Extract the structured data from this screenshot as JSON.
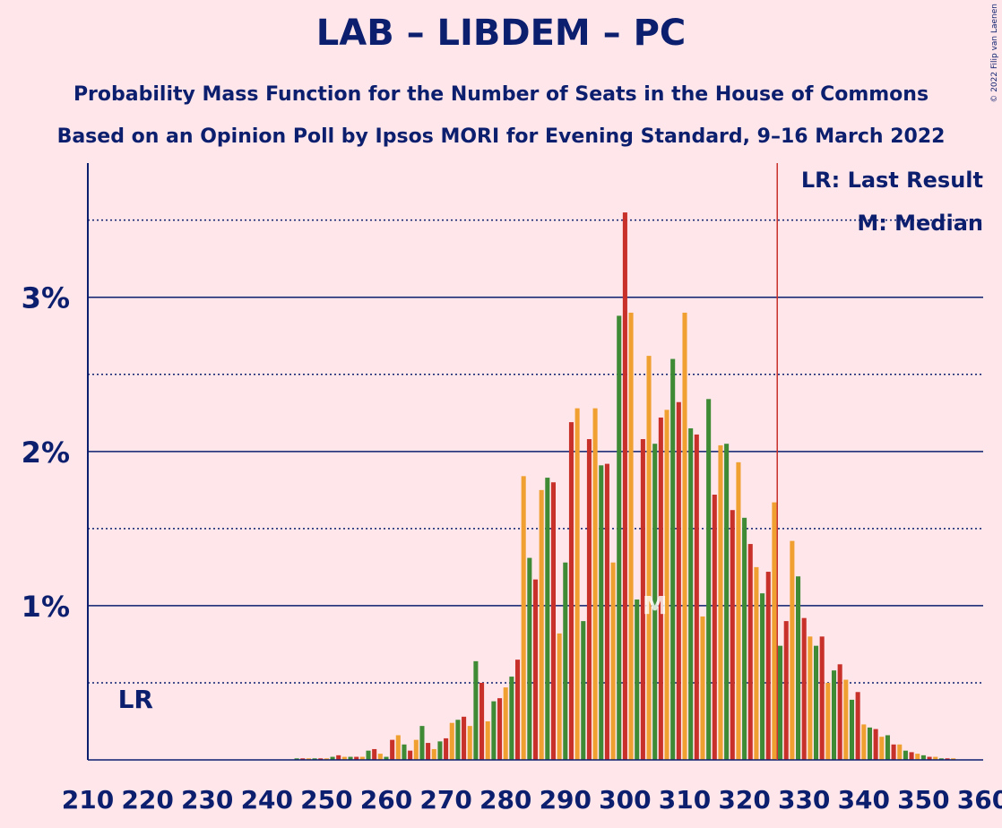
{
  "chart_data": {
    "type": "bar",
    "title": "LAB – LIBDEM – PC",
    "subtitle": "Probability Mass Function for the Number of Seats in the House of Commons",
    "subtitle2": "Based on an Opinion Poll by Ipsos MORI for Evening Standard, 9–16 March 2022",
    "copyright": "© 2022 Filip van Laenen",
    "legend": [
      "LR: Last Result",
      "M: Median"
    ],
    "legend_corner": "top-right",
    "last_result_label": "LR",
    "last_result": 218,
    "median_label": "M",
    "median": 305,
    "majority_line": 325.5,
    "colors": [
      "#c8302a",
      "#f0a030",
      "#3f8a35"
    ],
    "x": [
      210,
      211,
      212,
      213,
      214,
      215,
      216,
      217,
      218,
      219,
      220,
      221,
      222,
      223,
      224,
      225,
      226,
      227,
      228,
      229,
      230,
      231,
      232,
      233,
      234,
      235,
      236,
      237,
      238,
      239,
      240,
      241,
      242,
      243,
      244,
      245,
      246,
      247,
      248,
      249,
      250,
      251,
      252,
      253,
      254,
      255,
      256,
      257,
      258,
      259,
      260,
      261,
      262,
      263,
      264,
      265,
      266,
      267,
      268,
      269,
      270,
      271,
      272,
      273,
      274,
      275,
      276,
      277,
      278,
      279,
      280,
      281,
      282,
      283,
      284,
      285,
      286,
      287,
      288,
      289,
      290,
      291,
      292,
      293,
      294,
      295,
      296,
      297,
      298,
      299,
      300,
      301,
      302,
      303,
      304,
      305,
      306,
      307,
      308,
      309,
      310,
      311,
      312,
      313,
      314,
      315,
      316,
      317,
      318,
      319,
      320,
      321,
      322,
      323,
      324,
      325,
      326,
      327,
      328,
      329,
      330,
      331,
      332,
      333,
      334,
      335,
      336,
      337,
      338,
      339,
      340,
      341,
      342,
      343,
      344,
      345,
      346,
      347,
      348,
      349,
      350,
      351,
      352,
      353,
      354,
      355,
      356,
      357,
      358,
      359,
      360
    ],
    "values": [
      0,
      0,
      0,
      0,
      0,
      0,
      0,
      0,
      0,
      0,
      0,
      0,
      0,
      0,
      0,
      0,
      0,
      0,
      0,
      0,
      0,
      0,
      0,
      0,
      0,
      0,
      0,
      0,
      0,
      0,
      0,
      0,
      0,
      0,
      0,
      0.01,
      0.01,
      0.01,
      0.01,
      0.01,
      0.01,
      0.02,
      0.03,
      0.02,
      0.02,
      0.02,
      0.02,
      0.06,
      0.07,
      0.04,
      0.02,
      0.13,
      0.16,
      0.1,
      0.06,
      0.13,
      0.22,
      0.11,
      0.07,
      0.12,
      0.14,
      0.24,
      0.26,
      0.28,
      0.22,
      0.64,
      0.5,
      0.25,
      0.38,
      0.4,
      0.47,
      0.54,
      0.65,
      1.84,
      1.31,
      1.17,
      1.75,
      1.83,
      1.8,
      0.82,
      1.28,
      2.19,
      2.28,
      0.9,
      2.08,
      2.28,
      1.91,
      1.92,
      1.28,
      2.88,
      3.55,
      2.9,
      1.04,
      2.08,
      2.62,
      2.05,
      2.22,
      2.27,
      2.6,
      2.32,
      2.9,
      2.15,
      2.11,
      0.93,
      2.34,
      1.72,
      2.04,
      2.05,
      1.62,
      1.93,
      1.57,
      1.4,
      1.25,
      1.08,
      1.22,
      1.67,
      0.74,
      0.9,
      1.42,
      1.19,
      0.92,
      0.8,
      0.74,
      0.8,
      0.5,
      0.58,
      0.62,
      0.52,
      0.39,
      0.44,
      0.23,
      0.21,
      0.2,
      0.15,
      0.16,
      0.1,
      0.1,
      0.06,
      0.05,
      0.04,
      0.03,
      0.02,
      0.02,
      0.01,
      0.01,
      0.01,
      0,
      0,
      0,
      0,
      0
    ],
    "xlim": [
      210,
      360
    ],
    "xticks": [
      210,
      220,
      230,
      240,
      250,
      260,
      270,
      280,
      290,
      300,
      310,
      320,
      330,
      340,
      350,
      360
    ],
    "ylim": [
      0,
      3.87
    ],
    "yticks": [
      {
        "value": 1,
        "label": "1%"
      },
      {
        "value": 2,
        "label": "2%"
      },
      {
        "value": 3,
        "label": "3%"
      }
    ],
    "minor_yticks": [
      0.5,
      1.5,
      2.5,
      3.5
    ],
    "grid": true
  }
}
